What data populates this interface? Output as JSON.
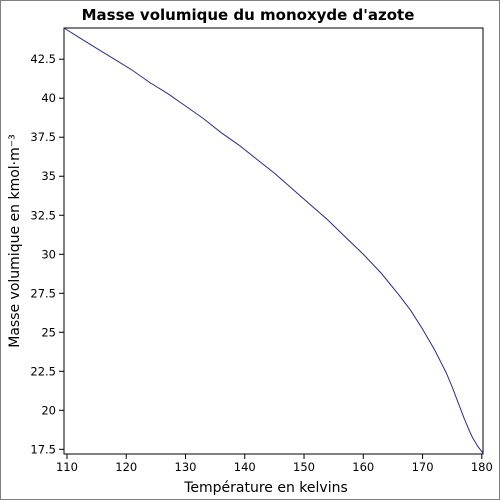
{
  "chart_data": {
    "type": "line",
    "title": "Masse volumique du monoxyde d'azote",
    "xlabel": "Température en kelvins",
    "ylabel": "Masse volumique en kmol·m⁻³",
    "xlim": [
      109.5,
      180.2
    ],
    "ylim": [
      17.2,
      44.5
    ],
    "grid": false,
    "x_ticks": [
      "110",
      "120",
      "130",
      "140",
      "150",
      "160",
      "170",
      "180"
    ],
    "y_ticks": [
      "17.5",
      "20",
      "22.5",
      "25",
      "27.5",
      "30",
      "32.5",
      "35",
      "37.5",
      "40",
      "42.5"
    ],
    "series": [
      {
        "color": "#2b2b8f",
        "x": [
          109.5,
          112,
          115,
          118,
          121,
          124,
          127,
          130,
          133,
          136,
          139,
          142,
          145,
          148,
          151,
          154,
          157,
          160,
          163,
          166,
          168,
          170,
          172,
          174,
          175,
          176,
          177,
          178,
          178.5,
          179,
          179.3,
          179.6,
          179.8,
          180.0,
          180.1,
          180.15
        ],
        "values": [
          44.5,
          43.9,
          43.2,
          42.5,
          41.8,
          41.0,
          40.3,
          39.5,
          38.7,
          37.8,
          37.0,
          36.1,
          35.2,
          34.2,
          33.2,
          32.2,
          31.1,
          30.0,
          28.8,
          27.4,
          26.4,
          25.2,
          23.9,
          22.4,
          21.5,
          20.5,
          19.5,
          18.6,
          18.2,
          17.9,
          17.7,
          17.55,
          17.45,
          17.35,
          17.3,
          17.2
        ]
      }
    ]
  }
}
